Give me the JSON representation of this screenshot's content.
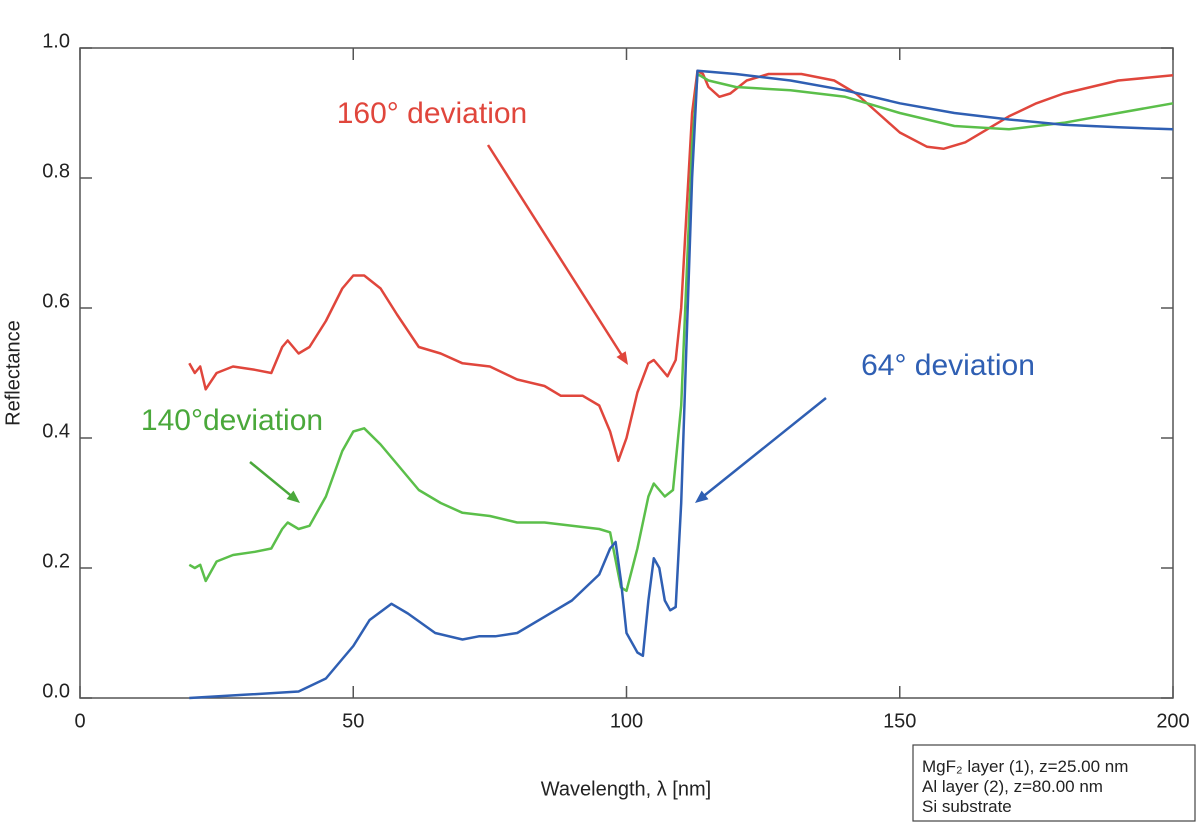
{
  "chart_data": {
    "type": "line",
    "xlabel": "Wavelength, λ [nm]",
    "ylabel": "Reflectance",
    "xlim": [
      0,
      200
    ],
    "ylim": [
      0,
      1
    ],
    "xticks": [
      0,
      50,
      100,
      150,
      200
    ],
    "yticks": [
      {
        "value": 0,
        "label": "0.0"
      },
      0.2,
      0.4,
      0.6,
      0.8,
      {
        "value": 1,
        "label": "1.0"
      }
    ],
    "series": [
      {
        "color": "#e0463c",
        "x": [
          20,
          21,
          22,
          23,
          25,
          28,
          32,
          35,
          37,
          38,
          40,
          42,
          45,
          48,
          50,
          52,
          55,
          58,
          62,
          66,
          70,
          75,
          80,
          85,
          88,
          92,
          95,
          97,
          98.5,
          100,
          102,
          104,
          105,
          106,
          107.5,
          109,
          110,
          111,
          112,
          113,
          114,
          115,
          117,
          119,
          122,
          126,
          132,
          138,
          142,
          146,
          150,
          155,
          158,
          162,
          166,
          170,
          175,
          180,
          190,
          200
        ],
        "values": [
          0.515,
          0.5,
          0.51,
          0.475,
          0.5,
          0.51,
          0.505,
          0.5,
          0.54,
          0.55,
          0.53,
          0.54,
          0.58,
          0.63,
          0.65,
          0.65,
          0.63,
          0.59,
          0.54,
          0.53,
          0.515,
          0.51,
          0.49,
          0.48,
          0.465,
          0.465,
          0.45,
          0.41,
          0.365,
          0.4,
          0.47,
          0.515,
          0.52,
          0.51,
          0.495,
          0.52,
          0.6,
          0.75,
          0.9,
          0.965,
          0.96,
          0.94,
          0.925,
          0.93,
          0.95,
          0.96,
          0.96,
          0.95,
          0.93,
          0.9,
          0.87,
          0.848,
          0.845,
          0.855,
          0.875,
          0.895,
          0.915,
          0.93,
          0.95,
          0.958
        ]
      },
      {
        "color": "#5bbf4a",
        "x": [
          20,
          21,
          22,
          23,
          25,
          28,
          32,
          35,
          37,
          38,
          40,
          42,
          45,
          48,
          50,
          52,
          55,
          58,
          62,
          66,
          70,
          75,
          80,
          85,
          90,
          95,
          97,
          99,
          100,
          102,
          104,
          105,
          107,
          108.5,
          110,
          111,
          112,
          113,
          115,
          120,
          130,
          140,
          150,
          160,
          170,
          180,
          190,
          200
        ],
        "values": [
          0.205,
          0.2,
          0.205,
          0.18,
          0.21,
          0.22,
          0.225,
          0.23,
          0.26,
          0.27,
          0.26,
          0.265,
          0.31,
          0.38,
          0.41,
          0.415,
          0.39,
          0.36,
          0.32,
          0.3,
          0.285,
          0.28,
          0.27,
          0.27,
          0.265,
          0.26,
          0.255,
          0.17,
          0.165,
          0.23,
          0.31,
          0.33,
          0.31,
          0.32,
          0.45,
          0.65,
          0.85,
          0.96,
          0.95,
          0.94,
          0.935,
          0.925,
          0.9,
          0.88,
          0.875,
          0.885,
          0.9,
          0.915
        ]
      },
      {
        "color": "#2f5fb3",
        "x": [
          20,
          30,
          40,
          45,
          48,
          50,
          53,
          57,
          60,
          65,
          70,
          73,
          76,
          80,
          85,
          90,
          95,
          97,
          98,
          99,
          100,
          102,
          103,
          104,
          105,
          106,
          107,
          108,
          109,
          110,
          111,
          112,
          113,
          120,
          130,
          140,
          150,
          160,
          170,
          180,
          190,
          200
        ],
        "values": [
          0,
          0.005,
          0.01,
          0.03,
          0.06,
          0.08,
          0.12,
          0.145,
          0.13,
          0.1,
          0.09,
          0.095,
          0.095,
          0.1,
          0.125,
          0.15,
          0.19,
          0.23,
          0.24,
          0.18,
          0.1,
          0.07,
          0.065,
          0.15,
          0.215,
          0.2,
          0.15,
          0.135,
          0.14,
          0.3,
          0.55,
          0.8,
          0.965,
          0.96,
          0.95,
          0.935,
          0.915,
          0.9,
          0.89,
          0.882,
          0.878,
          0.875
        ]
      }
    ],
    "annotations": [
      {
        "text": "160° deviation",
        "color": "#e0463c"
      },
      {
        "text": "140°deviation",
        "color": "#4aa83b"
      },
      {
        "text": "64° deviation",
        "color": "#2f5fb3"
      }
    ],
    "note": [
      "MgF₂ layer (1), z=25.00 nm",
      "Al layer (2), z=80.00 nm",
      "Si substrate"
    ]
  }
}
